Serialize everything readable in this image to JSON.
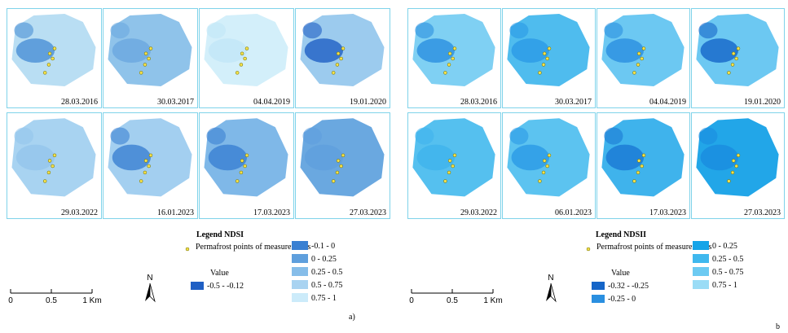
{
  "panels": [
    {
      "label": "a)",
      "legend_title": "Legend NDSI",
      "points_label": "Permafrost points of measurements",
      "value_label": "Value",
      "tiles": [
        {
          "date": "28.03.2016",
          "color": "#b9def3",
          "patch": "#4a8fd6"
        },
        {
          "date": "30.03.2017",
          "color": "#8fc3ea",
          "patch": "#6aa8e0"
        },
        {
          "date": "04.04.2019",
          "color": "#d3effa",
          "patch": "#c2e6f7"
        },
        {
          "date": "19.01.2020",
          "color": "#9ccbee",
          "patch": "#1f5fc4"
        },
        {
          "date": "29.03.2022",
          "color": "#a8d3f1",
          "patch": "#94c6ec"
        },
        {
          "date": "16.01.2023",
          "color": "#a3cff0",
          "patch": "#3a80d2"
        },
        {
          "date": "17.03.2023",
          "color": "#7fb8e8",
          "patch": "#3a80d2"
        },
        {
          "date": "27.03.2023",
          "color": "#6aa8e0",
          "patch": "#5f9fdd"
        }
      ],
      "classes_left": [
        {
          "label": "-0.5 - -0.12",
          "color": "#1f5fc4"
        }
      ],
      "classes_right": [
        {
          "label": "-0.1 - 0",
          "color": "#3a80d2"
        },
        {
          "label": "0 - 0.25",
          "color": "#5f9fdd"
        },
        {
          "label": "0.25 - 0.5",
          "color": "#86bde9"
        },
        {
          "label": "0.5 - 0.75",
          "color": "#a9d3f1"
        },
        {
          "label": "0.75 - 1",
          "color": "#ccebfa"
        }
      ],
      "scale_ticks": [
        "0",
        "0.5",
        "1 Km"
      ],
      "north": "N"
    },
    {
      "label": "b",
      "legend_title": "Legend NDSII",
      "points_label": "Permafrost points of measurements",
      "value_label": "Value",
      "tiles": [
        {
          "date": "28.03.2016",
          "color": "#7fd0f3",
          "patch": "#2a8fe0"
        },
        {
          "date": "30.03.2017",
          "color": "#4fbcee",
          "patch": "#2a9ae6"
        },
        {
          "date": "04.04.2019",
          "color": "#6cc8f2",
          "patch": "#2a8fe0"
        },
        {
          "date": "19.01.2020",
          "color": "#6cc8f2",
          "patch": "#1565c8"
        },
        {
          "date": "29.03.2022",
          "color": "#55c0ef",
          "patch": "#3fb3ec"
        },
        {
          "date": "06.01.2023",
          "color": "#5cc3f0",
          "patch": "#2a9ae6"
        },
        {
          "date": "17.03.2023",
          "color": "#3fb3ec",
          "patch": "#1a78d4"
        },
        {
          "date": "27.03.2023",
          "color": "#22a6e8",
          "patch": "#1a8cdf"
        }
      ],
      "classes_left": [
        {
          "label": "-0.32 - -0.25",
          "color": "#1565c8"
        },
        {
          "label": "-0.25 - 0",
          "color": "#2a8fe0"
        }
      ],
      "classes_right": [
        {
          "label": "0 - 0.25",
          "color": "#15a4e8"
        },
        {
          "label": "0.25 - 0.5",
          "color": "#3fb8ee"
        },
        {
          "label": "0.5 - 0.75",
          "color": "#6ccaf2"
        },
        {
          "label": "0.75 - 1",
          "color": "#9adcf6"
        }
      ],
      "scale_ticks": [
        "0",
        "0.5",
        "1 Km"
      ],
      "north": "N"
    }
  ]
}
